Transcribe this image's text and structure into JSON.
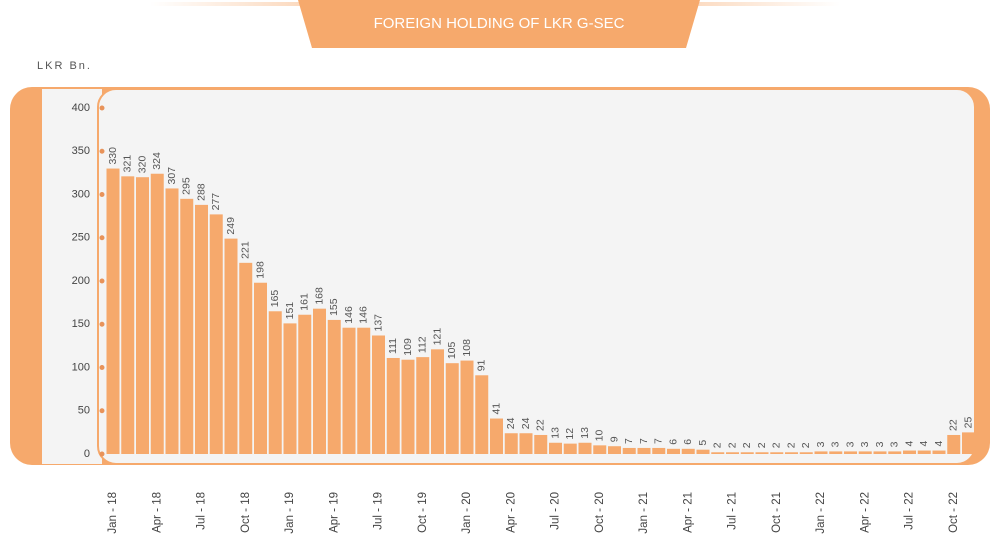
{
  "chart_data": {
    "type": "bar",
    "title": "FOREIGN HOLDING OF LKR G-SEC",
    "y_axis_label": "LKR Bn.",
    "categories": [
      "Jan - 18",
      null,
      null,
      "Apr - 18",
      null,
      null,
      "Jul - 18",
      null,
      null,
      "Oct - 18",
      null,
      null,
      "Jan - 19",
      null,
      null,
      "Apr - 19",
      null,
      null,
      "Jul - 19",
      null,
      null,
      "Oct - 19",
      null,
      null,
      "Jan - 20",
      null,
      null,
      "Apr - 20",
      null,
      null,
      "Jul - 20",
      null,
      null,
      "Oct - 20",
      null,
      null,
      "Jan - 21",
      null,
      null,
      "Apr - 21",
      null,
      null,
      "Jul - 21",
      null,
      null,
      "Oct - 21",
      null,
      null,
      "Jan - 22",
      null,
      null,
      "Apr - 22",
      null,
      null,
      "Jul - 22",
      null,
      null,
      "Oct - 22",
      null
    ],
    "values": [
      330,
      321,
      320,
      324,
      307,
      295,
      288,
      277,
      249,
      221,
      198,
      165,
      151,
      161,
      168,
      155,
      146,
      146,
      137,
      111,
      109,
      112,
      121,
      105,
      108,
      91,
      41,
      24,
      24,
      22,
      13,
      12,
      13,
      10,
      9,
      7,
      7,
      7,
      6,
      6,
      5,
      2,
      2,
      2,
      2,
      2,
      2,
      2,
      3,
      3,
      3,
      3,
      3,
      3,
      4,
      4,
      4,
      22,
      25
    ],
    "color": "#f6a96c",
    "ylim": [
      0,
      400
    ],
    "yticks": [
      0,
      50,
      100,
      150,
      200,
      250,
      300,
      350,
      400
    ]
  }
}
